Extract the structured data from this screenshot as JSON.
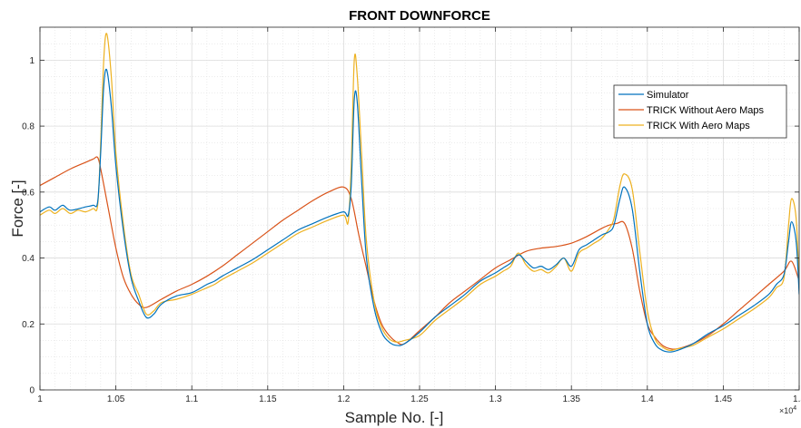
{
  "chart_data": {
    "type": "line",
    "title": "FRONT DOWNFORCE",
    "xlabel": "Sample No. [-]",
    "ylabel": "Force [-]",
    "x_exponent_label": "×10",
    "x_exponent_power": "4",
    "xlim": [
      1.0,
      1.5
    ],
    "ylim": [
      0,
      1.1
    ],
    "xticks": [
      1.0,
      1.05,
      1.1,
      1.15,
      1.2,
      1.25,
      1.3,
      1.35,
      1.4,
      1.45,
      1.5
    ],
    "xtick_labels": [
      "1",
      "1.05",
      "1.1",
      "1.15",
      "1.2",
      "1.25",
      "1.3",
      "1.35",
      "1.4",
      "1.45",
      "1.5"
    ],
    "yticks": [
      0,
      0.2,
      0.4,
      0.6,
      0.8,
      1.0
    ],
    "ytick_labels": [
      "0",
      "0.2",
      "0.4",
      "0.6",
      "0.8",
      "1"
    ],
    "grid": true,
    "minor_grid": true,
    "legend_position": "top-right",
    "series": [
      {
        "name": "Simulator",
        "color": "#0072BD",
        "x": [
          1.0,
          1.006,
          1.01,
          1.015,
          1.02,
          1.03,
          1.035,
          1.038,
          1.04,
          1.042,
          1.044,
          1.047,
          1.05,
          1.055,
          1.06,
          1.065,
          1.07,
          1.075,
          1.08,
          1.09,
          1.1,
          1.11,
          1.115,
          1.12,
          1.13,
          1.14,
          1.15,
          1.16,
          1.17,
          1.18,
          1.19,
          1.2,
          1.203,
          1.205,
          1.207,
          1.209,
          1.212,
          1.215,
          1.22,
          1.225,
          1.23,
          1.235,
          1.24,
          1.25,
          1.26,
          1.27,
          1.28,
          1.29,
          1.3,
          1.305,
          1.31,
          1.315,
          1.32,
          1.325,
          1.33,
          1.335,
          1.34,
          1.345,
          1.35,
          1.355,
          1.36,
          1.365,
          1.37,
          1.375,
          1.378,
          1.382,
          1.385,
          1.39,
          1.395,
          1.4,
          1.405,
          1.41,
          1.415,
          1.42,
          1.43,
          1.44,
          1.45,
          1.46,
          1.47,
          1.48,
          1.485,
          1.49,
          1.493,
          1.495,
          1.498,
          1.5
        ],
        "y": [
          0.54,
          0.555,
          0.545,
          0.56,
          0.545,
          0.555,
          0.56,
          0.57,
          0.72,
          0.92,
          0.97,
          0.86,
          0.68,
          0.48,
          0.34,
          0.27,
          0.22,
          0.23,
          0.26,
          0.285,
          0.295,
          0.32,
          0.33,
          0.345,
          0.37,
          0.395,
          0.425,
          0.455,
          0.485,
          0.505,
          0.525,
          0.54,
          0.53,
          0.62,
          0.88,
          0.87,
          0.62,
          0.4,
          0.25,
          0.175,
          0.145,
          0.135,
          0.14,
          0.175,
          0.22,
          0.255,
          0.29,
          0.33,
          0.355,
          0.37,
          0.385,
          0.41,
          0.39,
          0.37,
          0.375,
          0.365,
          0.38,
          0.4,
          0.375,
          0.425,
          0.44,
          0.455,
          0.47,
          0.48,
          0.5,
          0.58,
          0.615,
          0.55,
          0.36,
          0.2,
          0.14,
          0.12,
          0.115,
          0.12,
          0.14,
          0.17,
          0.195,
          0.225,
          0.255,
          0.29,
          0.32,
          0.35,
          0.45,
          0.51,
          0.45,
          0.29
        ]
      },
      {
        "name": "TRICK Without Aero Maps",
        "color": "#D95319",
        "x": [
          1.0,
          1.01,
          1.02,
          1.03,
          1.035,
          1.038,
          1.04,
          1.045,
          1.05,
          1.055,
          1.06,
          1.065,
          1.07,
          1.08,
          1.09,
          1.1,
          1.11,
          1.12,
          1.13,
          1.14,
          1.15,
          1.16,
          1.17,
          1.18,
          1.19,
          1.2,
          1.205,
          1.21,
          1.215,
          1.22,
          1.225,
          1.23,
          1.235,
          1.24,
          1.25,
          1.26,
          1.27,
          1.28,
          1.29,
          1.3,
          1.31,
          1.32,
          1.33,
          1.34,
          1.35,
          1.36,
          1.37,
          1.375,
          1.38,
          1.385,
          1.39,
          1.395,
          1.4,
          1.405,
          1.41,
          1.415,
          1.42,
          1.43,
          1.44,
          1.45,
          1.46,
          1.47,
          1.48,
          1.49,
          1.495,
          1.5
        ],
        "y": [
          0.62,
          0.645,
          0.67,
          0.69,
          0.7,
          0.705,
          0.67,
          0.55,
          0.43,
          0.34,
          0.29,
          0.26,
          0.25,
          0.275,
          0.3,
          0.32,
          0.345,
          0.375,
          0.41,
          0.445,
          0.48,
          0.515,
          0.545,
          0.575,
          0.6,
          0.615,
          0.58,
          0.47,
          0.37,
          0.27,
          0.2,
          0.165,
          0.145,
          0.14,
          0.18,
          0.22,
          0.265,
          0.3,
          0.335,
          0.37,
          0.395,
          0.42,
          0.43,
          0.435,
          0.445,
          0.465,
          0.49,
          0.5,
          0.505,
          0.505,
          0.43,
          0.3,
          0.2,
          0.16,
          0.135,
          0.125,
          0.125,
          0.14,
          0.165,
          0.2,
          0.24,
          0.28,
          0.32,
          0.36,
          0.39,
          0.33
        ]
      },
      {
        "name": "TRICK With Aero Maps",
        "color": "#EDB120",
        "x": [
          1.0,
          1.006,
          1.01,
          1.015,
          1.02,
          1.025,
          1.03,
          1.035,
          1.038,
          1.04,
          1.042,
          1.044,
          1.047,
          1.05,
          1.055,
          1.06,
          1.065,
          1.07,
          1.075,
          1.08,
          1.09,
          1.1,
          1.11,
          1.115,
          1.12,
          1.13,
          1.14,
          1.15,
          1.16,
          1.17,
          1.18,
          1.19,
          1.2,
          1.203,
          1.205,
          1.207,
          1.209,
          1.212,
          1.215,
          1.22,
          1.225,
          1.23,
          1.235,
          1.24,
          1.25,
          1.26,
          1.27,
          1.28,
          1.29,
          1.3,
          1.305,
          1.31,
          1.315,
          1.32,
          1.325,
          1.33,
          1.335,
          1.34,
          1.345,
          1.35,
          1.355,
          1.36,
          1.365,
          1.37,
          1.375,
          1.378,
          1.382,
          1.385,
          1.39,
          1.395,
          1.4,
          1.405,
          1.41,
          1.415,
          1.42,
          1.43,
          1.44,
          1.45,
          1.46,
          1.47,
          1.48,
          1.485,
          1.49,
          1.493,
          1.495,
          1.498,
          1.5
        ],
        "y": [
          0.53,
          0.545,
          0.535,
          0.55,
          0.535,
          0.545,
          0.54,
          0.55,
          0.56,
          0.75,
          1.0,
          1.08,
          0.95,
          0.72,
          0.5,
          0.35,
          0.29,
          0.23,
          0.24,
          0.265,
          0.275,
          0.29,
          0.31,
          0.32,
          0.335,
          0.36,
          0.385,
          0.415,
          0.445,
          0.475,
          0.495,
          0.515,
          0.53,
          0.51,
          0.68,
          1.0,
          0.95,
          0.7,
          0.45,
          0.27,
          0.19,
          0.155,
          0.145,
          0.15,
          0.165,
          0.21,
          0.245,
          0.28,
          0.32,
          0.345,
          0.36,
          0.375,
          0.415,
          0.38,
          0.36,
          0.365,
          0.355,
          0.375,
          0.4,
          0.36,
          0.415,
          0.43,
          0.445,
          0.46,
          0.49,
          0.52,
          0.62,
          0.655,
          0.61,
          0.42,
          0.24,
          0.155,
          0.13,
          0.12,
          0.125,
          0.135,
          0.16,
          0.185,
          0.215,
          0.245,
          0.28,
          0.31,
          0.34,
          0.5,
          0.58,
          0.52,
          0.32
        ]
      }
    ]
  }
}
